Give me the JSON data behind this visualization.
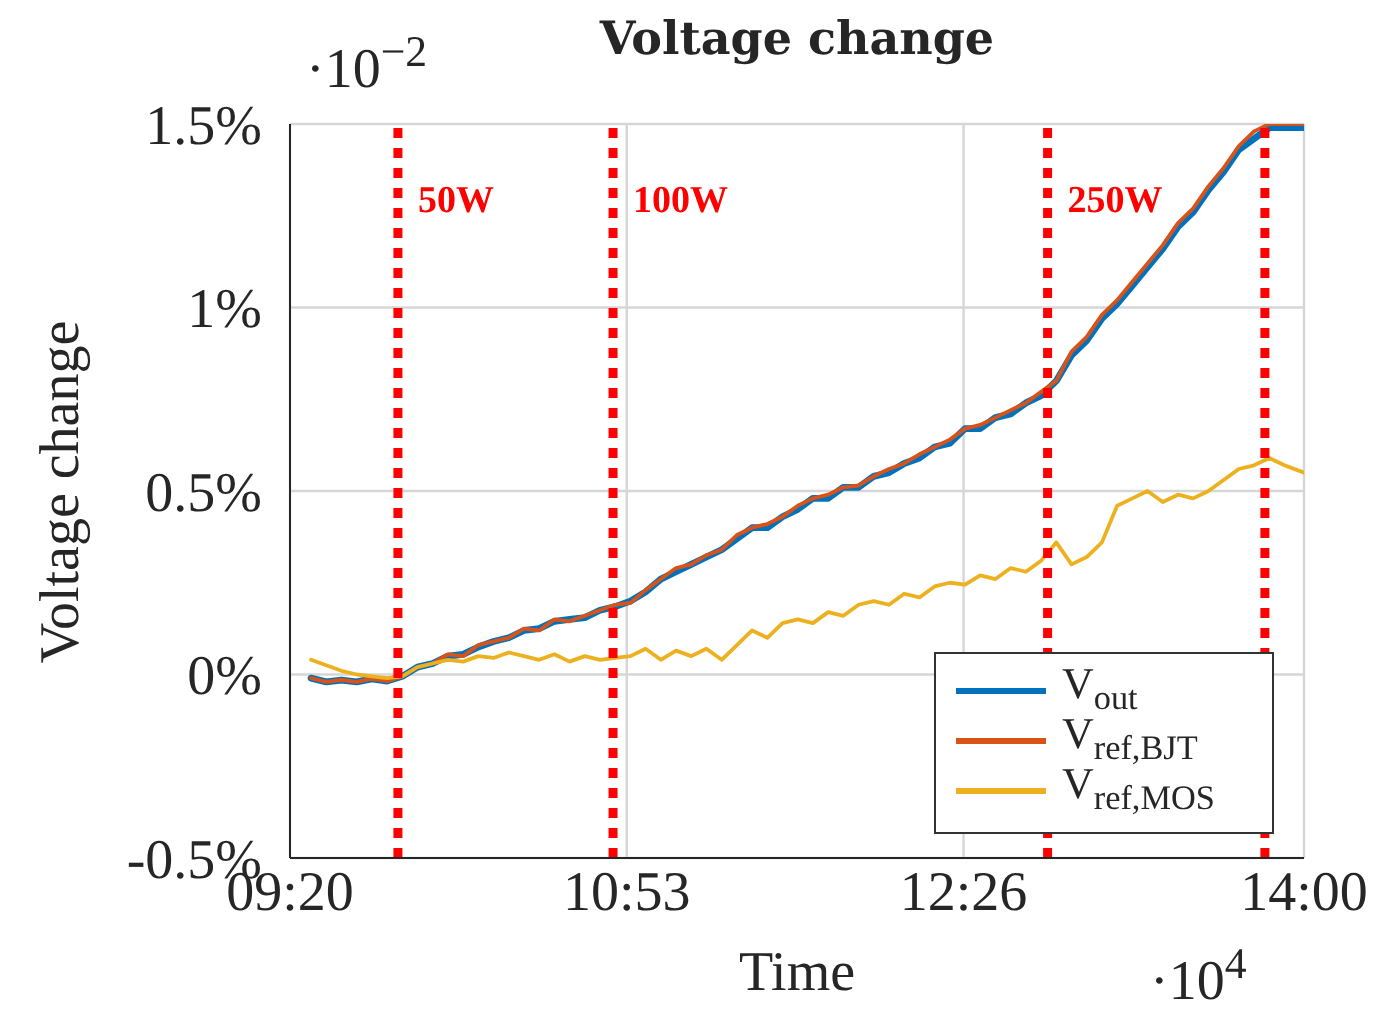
{
  "chart_data": {
    "type": "line",
    "title": "Voltage change",
    "xlabel": "Time",
    "ylabel": "Voltage change",
    "annotations": [
      "·10$^{−2}$",
      "·10$^{4}$"
    ],
    "x": [
      9.43,
      9.5,
      9.57,
      9.64,
      9.71,
      9.78,
      9.85,
      9.92,
      9.99,
      10.06,
      10.13,
      10.2,
      10.27,
      10.34,
      10.41,
      10.48,
      10.55,
      10.62,
      10.69,
      10.76,
      10.83,
      10.9,
      10.97,
      11.04,
      11.11,
      11.18,
      11.25,
      11.32,
      11.39,
      11.46,
      11.53,
      11.6,
      11.67,
      11.74,
      11.81,
      11.88,
      11.95,
      12.02,
      12.09,
      12.16,
      12.23,
      12.3,
      12.37,
      12.44,
      12.51,
      12.58,
      12.65,
      12.72,
      12.79,
      12.86,
      12.93,
      13.0,
      13.07,
      13.14,
      13.21,
      13.28,
      13.35,
      13.42,
      13.49,
      13.56,
      13.63,
      13.7,
      13.77,
      13.84,
      13.91,
      14.0
    ],
    "series": [
      {
        "name": "V$_{out}$",
        "color": "#0072bd",
        "values": [
          -0.01,
          -0.02,
          -0.015,
          -0.02,
          -0.012,
          -0.018,
          -0.005,
          0.02,
          0.03,
          0.05,
          0.055,
          0.075,
          0.09,
          0.1,
          0.12,
          0.125,
          0.145,
          0.15,
          0.155,
          0.175,
          0.185,
          0.2,
          0.225,
          0.26,
          0.28,
          0.3,
          0.32,
          0.34,
          0.37,
          0.4,
          0.4,
          0.43,
          0.45,
          0.48,
          0.48,
          0.51,
          0.51,
          0.54,
          0.55,
          0.575,
          0.59,
          0.62,
          0.63,
          0.67,
          0.67,
          0.7,
          0.71,
          0.74,
          0.76,
          0.8,
          0.87,
          0.91,
          0.97,
          1.01,
          1.06,
          1.11,
          1.16,
          1.22,
          1.26,
          1.32,
          1.37,
          1.43,
          1.46,
          1.49,
          1.49,
          1.49
        ]
      },
      {
        "name": "V$_{ref,BJT}$",
        "color": "#d95319",
        "values": [
          -0.01,
          -0.02,
          -0.015,
          -0.02,
          -0.012,
          -0.018,
          -0.005,
          0.02,
          0.03,
          0.055,
          0.05,
          0.08,
          0.09,
          0.1,
          0.125,
          0.12,
          0.15,
          0.145,
          0.16,
          0.175,
          0.19,
          0.195,
          0.23,
          0.26,
          0.29,
          0.3,
          0.325,
          0.34,
          0.38,
          0.4,
          0.41,
          0.43,
          0.46,
          0.48,
          0.49,
          0.51,
          0.515,
          0.54,
          0.56,
          0.575,
          0.6,
          0.62,
          0.64,
          0.67,
          0.68,
          0.7,
          0.72,
          0.74,
          0.77,
          0.8,
          0.88,
          0.92,
          0.98,
          1.02,
          1.07,
          1.12,
          1.17,
          1.23,
          1.27,
          1.33,
          1.38,
          1.44,
          1.48,
          1.5,
          1.5,
          1.5
        ]
      },
      {
        "name": "V$_{ref,MOS}$",
        "color": "#edb120",
        "values": [
          0.04,
          0.025,
          0.01,
          0.0,
          -0.005,
          -0.01,
          -0.005,
          0.02,
          0.03,
          0.04,
          0.035,
          0.05,
          0.045,
          0.06,
          0.05,
          0.04,
          0.055,
          0.035,
          0.05,
          0.04,
          0.045,
          0.05,
          0.07,
          0.04,
          0.065,
          0.05,
          0.07,
          0.04,
          0.08,
          0.12,
          0.1,
          0.14,
          0.15,
          0.14,
          0.17,
          0.16,
          0.19,
          0.2,
          0.19,
          0.22,
          0.21,
          0.24,
          0.25,
          0.245,
          0.27,
          0.26,
          0.29,
          0.28,
          0.31,
          0.36,
          0.3,
          0.32,
          0.36,
          0.46,
          0.48,
          0.5,
          0.47,
          0.49,
          0.48,
          0.5,
          0.53,
          0.56,
          0.57,
          0.59,
          0.57,
          0.55
        ]
      }
    ],
    "xlim": [
      9.3333,
      14
    ],
    "xticks": [
      {
        "value": 9.3333,
        "label": "09:20"
      },
      {
        "value": 10.8833,
        "label": "10:53"
      },
      {
        "value": 12.4333,
        "label": "12:26"
      },
      {
        "value": 14,
        "label": "14:00"
      }
    ],
    "ylim": [
      -0.5,
      1.5
    ],
    "yticks": [
      {
        "value": -0.5,
        "label": "-0.5%"
      },
      {
        "value": 0,
        "label": "0%"
      },
      {
        "value": 0.5,
        "label": "0.5%"
      },
      {
        "value": 1,
        "label": "1%"
      },
      {
        "value": 1.5,
        "label": "1.5%"
      }
    ],
    "ref_lines": [
      {
        "axis": "x",
        "value": 9.83,
        "label": "50W",
        "color": "#ff0000",
        "line_style": "dotted"
      },
      {
        "axis": "x",
        "value": 10.82,
        "label": "100W",
        "color": "#ff0000",
        "line_style": "dotted"
      },
      {
        "axis": "x",
        "value": 12.82,
        "label": "250W",
        "color": "#ff0000",
        "line_style": "dotted"
      },
      {
        "axis": "x",
        "value": 13.82,
        "color": "#ff0000",
        "line_style": "dotted"
      }
    ],
    "grid": true,
    "legend": "bottom right"
  }
}
